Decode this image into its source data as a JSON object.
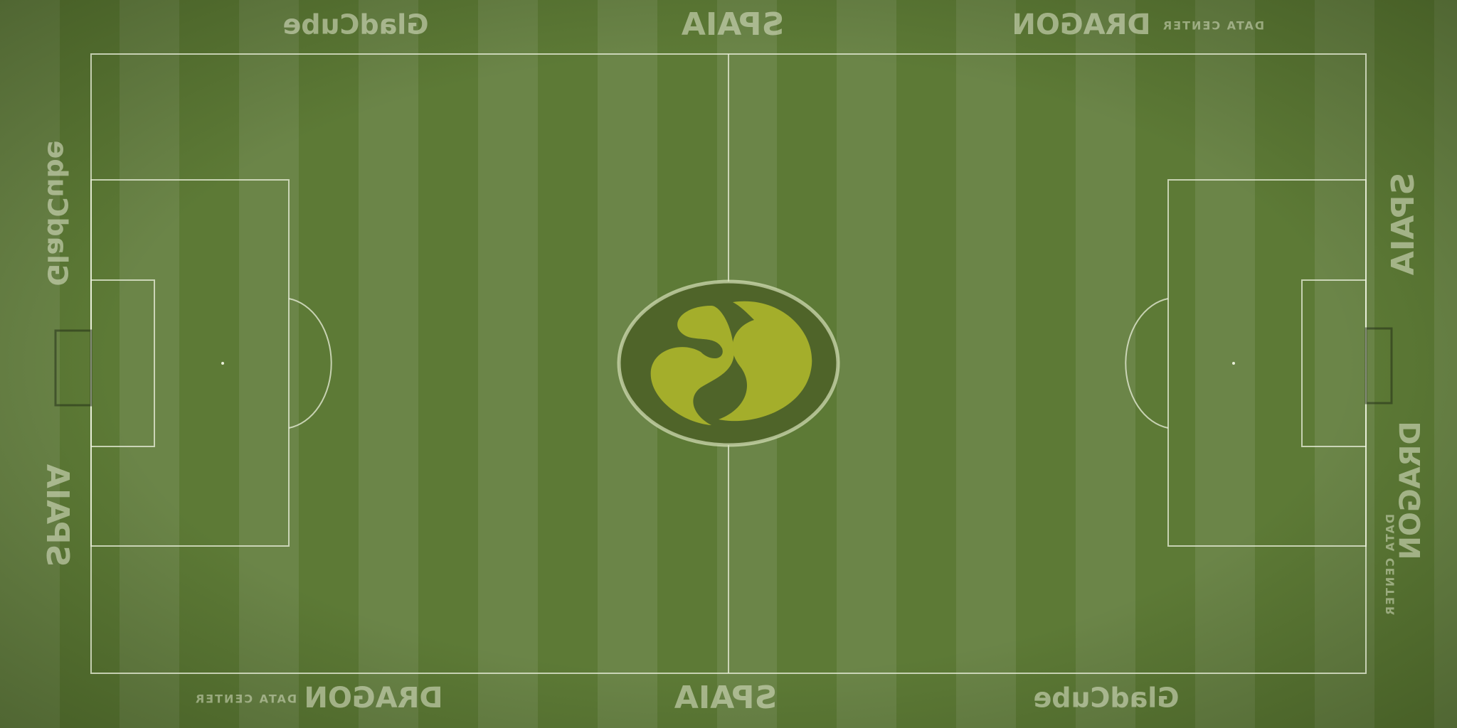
{
  "ads": {
    "top": [
      {
        "name": "GladCube"
      },
      {
        "name": "SPAIA"
      },
      {
        "name": "DRAGON",
        "sub": "DATA CENTER"
      }
    ],
    "bottom": [
      {
        "name": "DRAGON",
        "sub": "DATA CENTER"
      },
      {
        "name": "SPAIA"
      },
      {
        "name": "GladCube"
      }
    ],
    "left": [
      {
        "name": "GladCube"
      },
      {
        "name": "SPAIA"
      }
    ],
    "right": [
      {
        "name": "SPAIA"
      },
      {
        "name": "DRAGON",
        "sub": "DATA CENTER"
      }
    ]
  }
}
